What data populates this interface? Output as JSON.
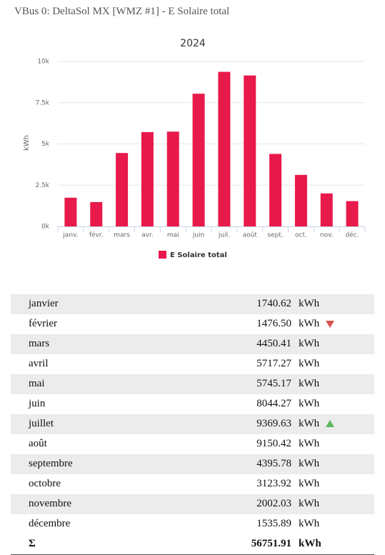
{
  "header": {
    "title": "VBus 0: DeltaSol MX [WMZ #1] - E Solaire total"
  },
  "chart_data": {
    "type": "bar",
    "title": "2024",
    "y_label": "kWh",
    "categories": [
      "janv.",
      "févr.",
      "mars",
      "avr.",
      "mai",
      "juin",
      "juil.",
      "août",
      "sept.",
      "oct.",
      "nov.",
      "déc."
    ],
    "series": [
      {
        "name": "E Solaire total",
        "color": "#e8194b",
        "values": [
          1740.62,
          1476.5,
          4450.41,
          5717.27,
          5745.17,
          8044.27,
          9369.63,
          9150.42,
          4395.78,
          3123.92,
          2002.03,
          1535.89
        ]
      }
    ],
    "ylim": [
      0,
      10000
    ],
    "yticks": [
      {
        "value": 0,
        "label": "0k"
      },
      {
        "value": 2500,
        "label": "2.5k"
      },
      {
        "value": 5000,
        "label": "5k"
      },
      {
        "value": 7500,
        "label": "7.5k"
      },
      {
        "value": 10000,
        "label": "10k"
      }
    ],
    "grid": true,
    "legend": "bottom"
  },
  "table": {
    "rows": [
      [
        "janvier",
        "1740.62",
        "kWh"
      ],
      [
        "février",
        "1476.50",
        "kWh"
      ],
      [
        "mars",
        "4450.41",
        "kWh"
      ],
      [
        "avril",
        "5717.27",
        "kWh"
      ],
      [
        "mai",
        "5745.17",
        "kWh"
      ],
      [
        "juin",
        "8044.27",
        "kWh"
      ],
      [
        "juillet",
        "9369.63",
        "kWh"
      ],
      [
        "août",
        "9150.42",
        "kWh"
      ],
      [
        "septembre",
        "4395.78",
        "kWh"
      ],
      [
        "octobre",
        "3123.92",
        "kWh"
      ],
      [
        "novembre",
        "2002.03",
        "kWh"
      ],
      [
        "décembre",
        "1535.89",
        "kWh"
      ],
      [
        "Σ",
        "56751.91",
        "kWh"
      ]
    ]
  }
}
